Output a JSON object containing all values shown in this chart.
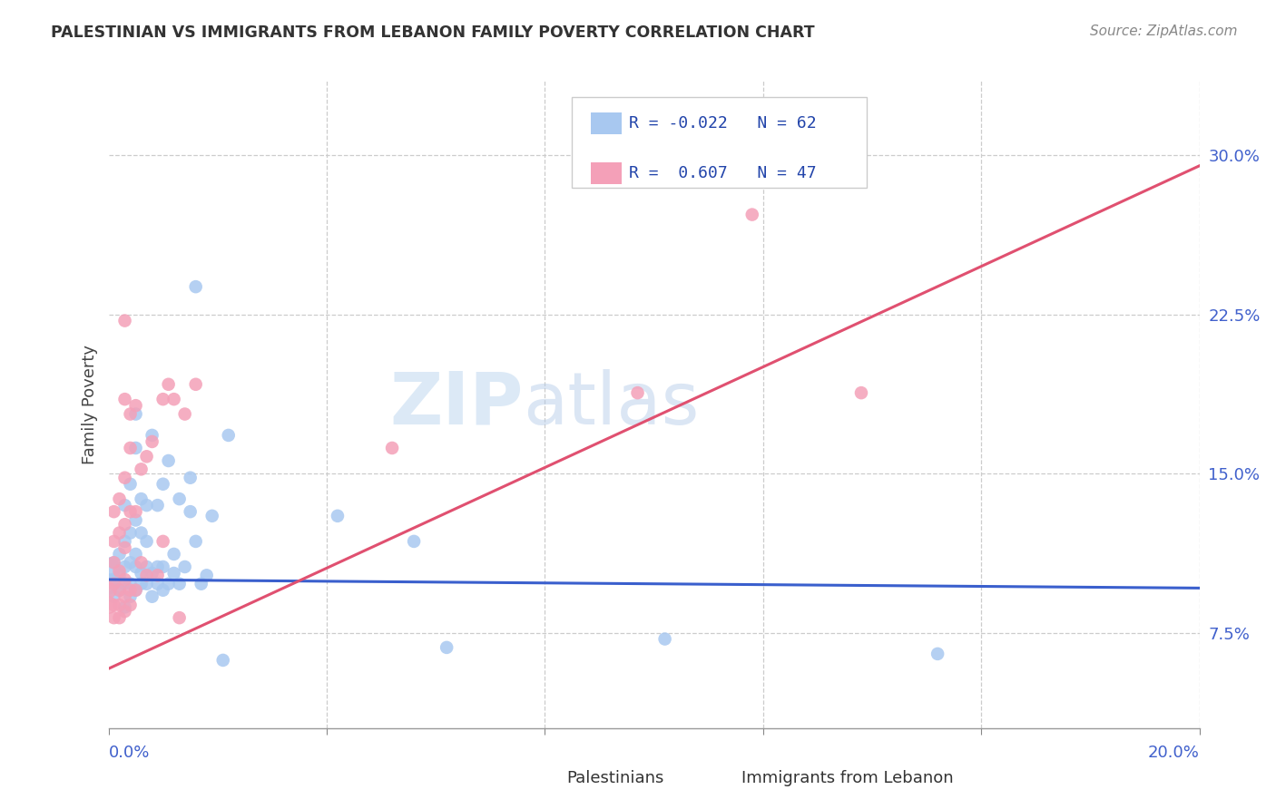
{
  "title": "PALESTINIAN VS IMMIGRANTS FROM LEBANON FAMILY POVERTY CORRELATION CHART",
  "source": "Source: ZipAtlas.com",
  "ylabel": "Family Poverty",
  "r_blue": -0.022,
  "n_blue": 62,
  "r_pink": 0.607,
  "n_pink": 47,
  "yticks": [
    0.075,
    0.15,
    0.225,
    0.3
  ],
  "ytick_labels": [
    "7.5%",
    "15.0%",
    "22.5%",
    "30.0%"
  ],
  "xtick_labels": [
    "0.0%",
    "20.0%"
  ],
  "xlim": [
    0.0,
    0.2
  ],
  "ylim": [
    0.03,
    0.335
  ],
  "blue_color": "#a8c8f0",
  "pink_color": "#f4a0b8",
  "blue_line_color": "#3a5fcd",
  "pink_line_color": "#e05070",
  "legend_r_color": "#2244aa",
  "tick_color": "#4060cc",
  "watermark_zip": "ZIP",
  "watermark_atlas": "atlas",
  "blue_scatter": [
    [
      0.0,
      0.105
    ],
    [
      0.0,
      0.098
    ],
    [
      0.001,
      0.092
    ],
    [
      0.001,
      0.1
    ],
    [
      0.001,
      0.108
    ],
    [
      0.002,
      0.095
    ],
    [
      0.002,
      0.102
    ],
    [
      0.002,
      0.112
    ],
    [
      0.003,
      0.087
    ],
    [
      0.003,
      0.098
    ],
    [
      0.003,
      0.106
    ],
    [
      0.003,
      0.118
    ],
    [
      0.003,
      0.135
    ],
    [
      0.004,
      0.092
    ],
    [
      0.004,
      0.098
    ],
    [
      0.004,
      0.108
    ],
    [
      0.004,
      0.122
    ],
    [
      0.004,
      0.145
    ],
    [
      0.005,
      0.095
    ],
    [
      0.005,
      0.106
    ],
    [
      0.005,
      0.112
    ],
    [
      0.005,
      0.128
    ],
    [
      0.005,
      0.162
    ],
    [
      0.005,
      0.178
    ],
    [
      0.006,
      0.098
    ],
    [
      0.006,
      0.103
    ],
    [
      0.006,
      0.122
    ],
    [
      0.006,
      0.138
    ],
    [
      0.007,
      0.098
    ],
    [
      0.007,
      0.106
    ],
    [
      0.007,
      0.118
    ],
    [
      0.007,
      0.135
    ],
    [
      0.008,
      0.092
    ],
    [
      0.008,
      0.103
    ],
    [
      0.008,
      0.168
    ],
    [
      0.009,
      0.098
    ],
    [
      0.009,
      0.106
    ],
    [
      0.009,
      0.135
    ],
    [
      0.01,
      0.095
    ],
    [
      0.01,
      0.106
    ],
    [
      0.01,
      0.145
    ],
    [
      0.011,
      0.098
    ],
    [
      0.011,
      0.156
    ],
    [
      0.012,
      0.103
    ],
    [
      0.012,
      0.112
    ],
    [
      0.013,
      0.098
    ],
    [
      0.013,
      0.138
    ],
    [
      0.014,
      0.106
    ],
    [
      0.015,
      0.132
    ],
    [
      0.015,
      0.148
    ],
    [
      0.016,
      0.118
    ],
    [
      0.016,
      0.238
    ],
    [
      0.017,
      0.098
    ],
    [
      0.018,
      0.102
    ],
    [
      0.019,
      0.13
    ],
    [
      0.021,
      0.062
    ],
    [
      0.022,
      0.168
    ],
    [
      0.042,
      0.13
    ],
    [
      0.056,
      0.118
    ],
    [
      0.062,
      0.068
    ],
    [
      0.102,
      0.072
    ],
    [
      0.152,
      0.065
    ]
  ],
  "pink_scatter": [
    [
      0.0,
      0.088
    ],
    [
      0.0,
      0.095
    ],
    [
      0.001,
      0.082
    ],
    [
      0.001,
      0.088
    ],
    [
      0.001,
      0.098
    ],
    [
      0.001,
      0.108
    ],
    [
      0.001,
      0.118
    ],
    [
      0.001,
      0.132
    ],
    [
      0.002,
      0.082
    ],
    [
      0.002,
      0.088
    ],
    [
      0.002,
      0.095
    ],
    [
      0.002,
      0.104
    ],
    [
      0.002,
      0.122
    ],
    [
      0.002,
      0.138
    ],
    [
      0.003,
      0.085
    ],
    [
      0.003,
      0.092
    ],
    [
      0.003,
      0.1
    ],
    [
      0.003,
      0.115
    ],
    [
      0.003,
      0.126
    ],
    [
      0.003,
      0.148
    ],
    [
      0.003,
      0.185
    ],
    [
      0.003,
      0.222
    ],
    [
      0.004,
      0.088
    ],
    [
      0.004,
      0.095
    ],
    [
      0.004,
      0.132
    ],
    [
      0.004,
      0.162
    ],
    [
      0.004,
      0.178
    ],
    [
      0.005,
      0.095
    ],
    [
      0.005,
      0.132
    ],
    [
      0.005,
      0.182
    ],
    [
      0.006,
      0.108
    ],
    [
      0.006,
      0.152
    ],
    [
      0.007,
      0.102
    ],
    [
      0.007,
      0.158
    ],
    [
      0.008,
      0.165
    ],
    [
      0.009,
      0.102
    ],
    [
      0.01,
      0.118
    ],
    [
      0.01,
      0.185
    ],
    [
      0.011,
      0.192
    ],
    [
      0.012,
      0.185
    ],
    [
      0.013,
      0.082
    ],
    [
      0.014,
      0.178
    ],
    [
      0.016,
      0.192
    ],
    [
      0.052,
      0.162
    ],
    [
      0.097,
      0.188
    ],
    [
      0.118,
      0.272
    ],
    [
      0.138,
      0.188
    ]
  ],
  "blue_line_x": [
    0.0,
    0.2
  ],
  "blue_line_y": [
    0.1,
    0.096
  ],
  "pink_line_x": [
    0.0,
    0.2
  ],
  "pink_line_y": [
    0.058,
    0.295
  ]
}
